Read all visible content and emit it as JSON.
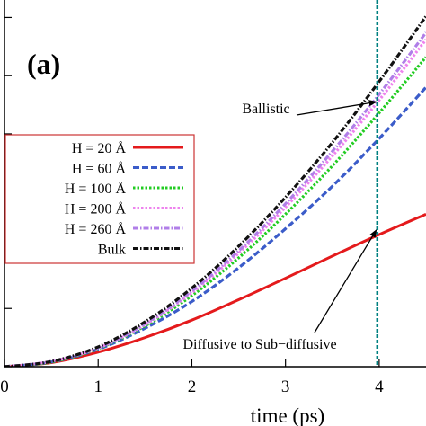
{
  "chart_data": {
    "type": "line",
    "panel_label": "(a)",
    "xlabel": "time (ps)",
    "ylabel": "",
    "xlim": [
      0,
      4.5
    ],
    "ylim": [
      0,
      6.3
    ],
    "x_ticks": [
      0,
      1,
      2,
      3,
      4
    ],
    "y_ticks": [
      0,
      1,
      2,
      3,
      4,
      5,
      6
    ],
    "grid": false,
    "legend_position": "middle-left",
    "vertical_marker": {
      "x": 3.98,
      "color": "#008080"
    },
    "annotations": [
      {
        "text": "Ballistic",
        "target": [
          3.97,
          4.55
        ]
      },
      {
        "text": "Diffusive to Sub−diffusive",
        "target": [
          3.97,
          2.35
        ]
      }
    ],
    "series": [
      {
        "name": "H = 20 Å",
        "color": "#e41a1c",
        "style": "solid",
        "x": [
          0,
          0.5,
          1,
          1.5,
          2,
          2.5,
          3,
          3.5,
          4,
          4.5
        ],
        "y": [
          0,
          0.07,
          0.25,
          0.5,
          0.8,
          1.15,
          1.52,
          1.9,
          2.27,
          2.62
        ]
      },
      {
        "name": "H = 60 Å",
        "color": "#3b5cc9",
        "style": "dashed",
        "x": [
          0,
          0.5,
          1,
          1.5,
          2,
          2.5,
          3,
          3.5,
          4,
          4.5
        ],
        "y": [
          0,
          0.08,
          0.3,
          0.66,
          1.12,
          1.7,
          2.37,
          3.1,
          3.92,
          4.8
        ]
      },
      {
        "name": "H = 100 Å",
        "color": "#22cc22",
        "style": "dotted",
        "x": [
          0,
          0.5,
          1,
          1.5,
          2,
          2.5,
          3,
          3.5,
          4,
          4.5
        ],
        "y": [
          0,
          0.08,
          0.31,
          0.7,
          1.22,
          1.87,
          2.62,
          3.45,
          4.36,
          5.32
        ]
      },
      {
        "name": "H = 200 Å",
        "color": "#ee82ee",
        "style": "dotted",
        "x": [
          0,
          0.5,
          1,
          1.5,
          2,
          2.5,
          3,
          3.5,
          4,
          4.5
        ],
        "y": [
          0,
          0.09,
          0.32,
          0.72,
          1.27,
          1.95,
          2.74,
          3.62,
          4.58,
          5.62
        ]
      },
      {
        "name": "H = 260 Å",
        "color": "#b07ee8",
        "style": "dashdot",
        "x": [
          0,
          0.5,
          1,
          1.5,
          2,
          2.5,
          3,
          3.5,
          4,
          4.5
        ],
        "y": [
          0,
          0.09,
          0.33,
          0.74,
          1.3,
          1.99,
          2.8,
          3.7,
          4.68,
          5.74
        ]
      },
      {
        "name": "Bulk",
        "color": "#111111",
        "style": "dashdot",
        "x": [
          0,
          0.5,
          1,
          1.5,
          2,
          2.5,
          3,
          3.5,
          4,
          4.5
        ],
        "y": [
          0,
          0.09,
          0.34,
          0.77,
          1.35,
          2.07,
          2.91,
          3.85,
          4.9,
          6.02
        ]
      }
    ]
  }
}
